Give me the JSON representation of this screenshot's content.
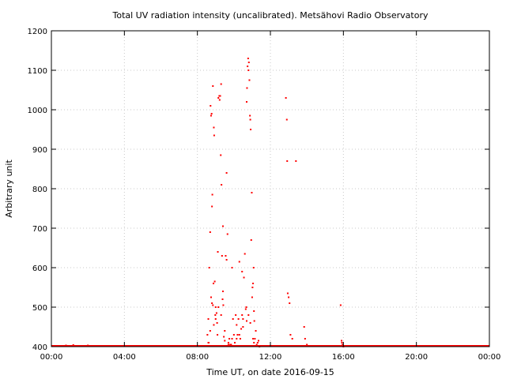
{
  "chart_data": {
    "type": "scatter",
    "title": "Total UV radiation intensity (uncalibrated). Metsähovi Radio Observatory",
    "xlabel": "Time UT, on date 2016-09-15",
    "ylabel": "Arbitrary unit",
    "xlim": [
      0,
      24
    ],
    "ylim": [
      400,
      1200
    ],
    "x_ticks": [
      {
        "v": 0,
        "label": "00:00"
      },
      {
        "v": 4,
        "label": "04:00"
      },
      {
        "v": 8,
        "label": "08:00"
      },
      {
        "v": 12,
        "label": "12:00"
      },
      {
        "v": 16,
        "label": "16:00"
      },
      {
        "v": 20,
        "label": "20:00"
      },
      {
        "v": 24,
        "label": "00:00"
      }
    ],
    "y_ticks": [
      400,
      500,
      600,
      700,
      800,
      900,
      1000,
      1100,
      1200
    ],
    "grid": true,
    "color": "#ff0000",
    "baseline": {
      "value": 400,
      "x_from": 0,
      "x_to": 24
    },
    "series": [
      {
        "x": [
          8.55,
          8.6,
          8.62,
          8.65,
          8.7,
          8.72,
          8.75,
          8.78,
          8.8,
          8.82,
          8.85,
          8.88,
          8.9,
          8.92,
          8.95,
          8.98,
          9.0,
          9.05,
          9.08,
          9.1,
          9.12,
          9.15,
          9.2,
          9.22,
          9.25,
          9.28,
          9.3,
          9.32,
          9.35,
          9.38,
          9.4,
          9.42,
          9.45,
          9.5,
          9.55,
          9.6,
          9.65,
          9.7,
          9.75,
          9.8,
          9.85,
          9.9,
          9.95,
          10.0,
          10.05,
          10.1,
          10.15,
          10.2,
          10.25,
          10.3,
          10.35,
          10.4,
          10.45,
          10.5,
          10.55,
          10.6,
          10.65,
          10.68,
          10.7,
          10.72,
          10.75,
          10.78,
          10.8,
          10.82,
          10.85,
          10.88,
          10.9,
          10.92,
          10.95,
          10.98,
          11.0,
          11.02,
          11.05,
          11.08,
          11.1,
          11.12,
          11.15,
          11.2,
          11.25,
          11.3,
          11.35,
          11.4,
          8.6,
          8.7,
          8.8,
          8.9,
          9.0,
          9.3,
          9.5,
          9.7,
          9.9,
          10.3,
          10.5,
          10.7,
          10.9,
          11.1,
          8.75,
          8.85,
          9.15,
          9.4,
          9.6,
          10.15,
          10.45,
          10.8,
          11.05,
          12.85,
          12.9,
          12.92,
          12.95,
          13.0,
          13.05,
          13.1,
          13.2,
          13.4,
          13.85,
          13.9,
          14.0,
          15.85,
          15.9,
          15.92,
          15.95,
          16.0,
          16.05,
          0.8,
          1.0,
          1.2,
          1.6,
          2.0,
          2.2
        ],
        "y": [
          430,
          470,
          410,
          600,
          690,
          1010,
          985,
          990,
          755,
          785,
          1060,
          560,
          955,
          935,
          565,
          480,
          500,
          485,
          460,
          430,
          640,
          1030,
          1035,
          1025,
          1035,
          885,
          1065,
          810,
          630,
          520,
          540,
          505,
          425,
          440,
          630,
          840,
          685,
          410,
          420,
          405,
          405,
          600,
          470,
          430,
          410,
          480,
          455,
          430,
          470,
          615,
          420,
          445,
          480,
          470,
          575,
          635,
          495,
          500,
          1020,
          1055,
          1110,
          1130,
          1100,
          1120,
          1075,
          985,
          975,
          950,
          670,
          790,
          525,
          550,
          560,
          600,
          490,
          465,
          420,
          440,
          405,
          410,
          415,
          400,
          410,
          440,
          510,
          455,
          470,
          480,
          415,
          405,
          420,
          430,
          450,
          465,
          460,
          410,
          525,
          505,
          500,
          705,
          620,
          420,
          590,
          480,
          420,
          1030,
          975,
          870,
          535,
          525,
          510,
          430,
          420,
          870,
          450,
          420,
          405,
          505,
          415,
          410,
          405,
          400,
          402,
          403,
          402,
          404,
          402,
          403,
          402
        ]
      }
    ]
  }
}
